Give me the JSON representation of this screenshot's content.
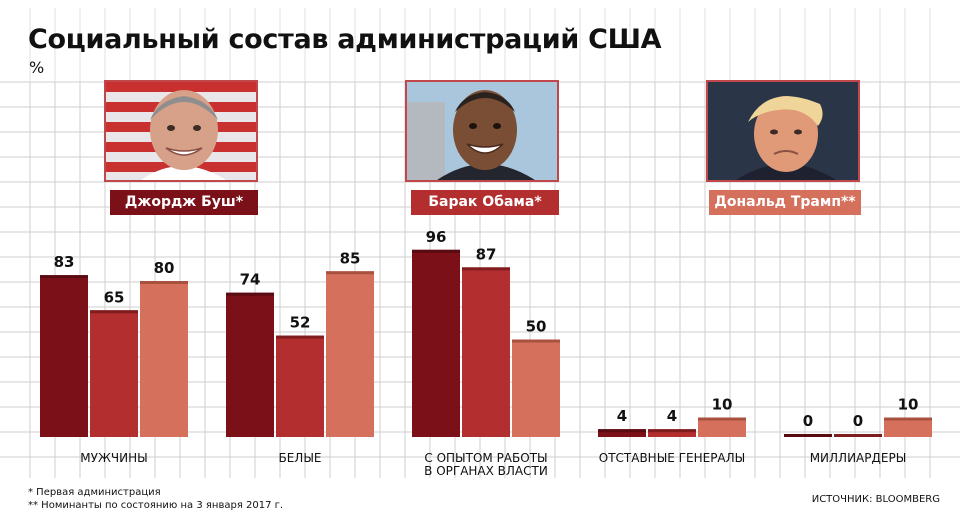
{
  "title": "Социальный состав администраций США",
  "unit": "%",
  "presidents": [
    {
      "name": "Джордж Буш*",
      "color": "#7b1019"
    },
    {
      "name": "Барак Обама*",
      "color": "#b32e2f"
    },
    {
      "name": "Дональд Трамп**",
      "color": "#d5705d"
    }
  ],
  "footnotes": {
    "first": "* Первая администрация",
    "second": "** Номинанты по состоянию на 3 января 2017 г."
  },
  "source": "ИСТОЧНИК: BLOOMBERG",
  "chart_data": {
    "type": "bar",
    "title": "Социальный состав администраций США",
    "ylabel": "%",
    "ylim": [
      0,
      100
    ],
    "grid": true,
    "categories": [
      "МУЖЧИНЫ",
      "БЕЛЫЕ",
      "С ОПЫТОМ РАБОТЫ\nВ ОРГАНАХ ВЛАСТИ",
      "ОТСТАВНЫЕ ГЕНЕРАЛЫ",
      "МИЛЛИАРДЕРЫ"
    ],
    "series": [
      {
        "name": "Джордж Буш",
        "color": "#7b1019",
        "values": [
          83,
          74,
          96,
          4,
          0
        ]
      },
      {
        "name": "Барак Обама",
        "color": "#b32e2f",
        "values": [
          65,
          52,
          87,
          4,
          0
        ]
      },
      {
        "name": "Дональд Трамп",
        "color": "#d5705d",
        "values": [
          80,
          85,
          50,
          10,
          10
        ]
      }
    ]
  }
}
